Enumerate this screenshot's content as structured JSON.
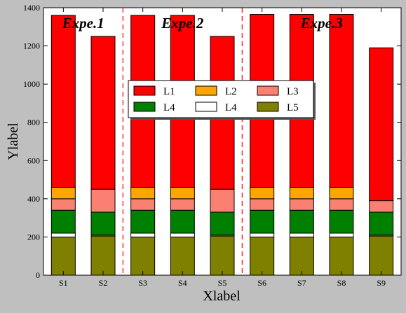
{
  "chart_data": {
    "type": "bar",
    "stacked": true,
    "xlabel": "Xlabel",
    "ylabel": "Ylabel",
    "ylim": [
      0,
      1400
    ],
    "yticks": [
      0,
      200,
      400,
      600,
      800,
      1000,
      1200,
      1400
    ],
    "categories": [
      "S1",
      "S2",
      "S3",
      "S4",
      "S5",
      "S6",
      "S7",
      "S8",
      "S9"
    ],
    "series": [
      {
        "name": "L5",
        "color": "#808000",
        "values": [
          200,
          205,
          200,
          200,
          205,
          200,
          200,
          200,
          205
        ]
      },
      {
        "name": "L4",
        "color": "#ffffff",
        "values": [
          20,
          5,
          20,
          20,
          5,
          20,
          20,
          20,
          5
        ]
      },
      {
        "name": "L4",
        "color": "#008000",
        "values": [
          120,
          120,
          120,
          120,
          120,
          120,
          120,
          120,
          120
        ]
      },
      {
        "name": "L3",
        "color": "#fa8072",
        "values": [
          60,
          120,
          60,
          60,
          120,
          60,
          60,
          60,
          60
        ]
      },
      {
        "name": "L2",
        "color": "#ffa500",
        "values": [
          60,
          0,
          60,
          60,
          0,
          60,
          60,
          60,
          0
        ]
      },
      {
        "name": "L1",
        "color": "#ff0000",
        "values": [
          900,
          800,
          900,
          900,
          800,
          905,
          905,
          905,
          800
        ]
      }
    ],
    "legend": {
      "placement": "center",
      "columns": 3,
      "entries": [
        {
          "name": "L1",
          "color": "#ff0000"
        },
        {
          "name": "L2",
          "color": "#ffa500"
        },
        {
          "name": "L3",
          "color": "#fa8072"
        },
        {
          "name": "L4",
          "color": "#008000"
        },
        {
          "name": "L4",
          "color": "#ffffff"
        },
        {
          "name": "L5",
          "color": "#808000"
        }
      ]
    },
    "groups": [
      {
        "label": "Expe.1",
        "from": 0,
        "to": 1
      },
      {
        "label": "Expe.2",
        "from": 2,
        "to": 4
      },
      {
        "label": "Expe.3",
        "from": 5,
        "to": 8
      }
    ],
    "separators_after": [
      1,
      4
    ],
    "separator_color": "#ff0000",
    "grid": false
  }
}
